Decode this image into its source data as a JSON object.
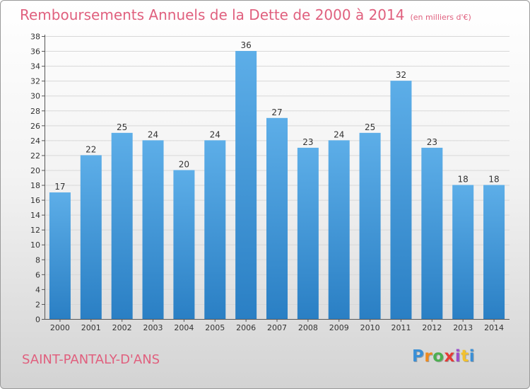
{
  "header": {
    "title": "Remboursements Annuels de la Dette de 2000 à 2014",
    "unit": "(en milliers d'€)"
  },
  "footer": {
    "commune": "SAINT-PANTALY-D'ANS",
    "logo_text": "Proxiti"
  },
  "colors": {
    "bar_light": "#5daee8",
    "bar_dark": "#2a7fc4",
    "title": "#e0607e"
  },
  "chart_data": {
    "type": "bar",
    "title": "Remboursements Annuels de la Dette de 2000 à 2014",
    "unit": "(en milliers d'€)",
    "categories": [
      "2000",
      "2001",
      "2002",
      "2003",
      "2004",
      "2005",
      "2006",
      "2007",
      "2008",
      "2009",
      "2010",
      "2011",
      "2012",
      "2013",
      "2014"
    ],
    "values": [
      17,
      22,
      25,
      24,
      20,
      24,
      36,
      27,
      23,
      24,
      25,
      32,
      23,
      18,
      18
    ],
    "ylim": [
      0,
      38
    ],
    "yticks": [
      0,
      2,
      4,
      6,
      8,
      10,
      12,
      14,
      16,
      18,
      20,
      22,
      24,
      26,
      28,
      30,
      32,
      34,
      36,
      38
    ],
    "grid": true,
    "legend": "none"
  }
}
